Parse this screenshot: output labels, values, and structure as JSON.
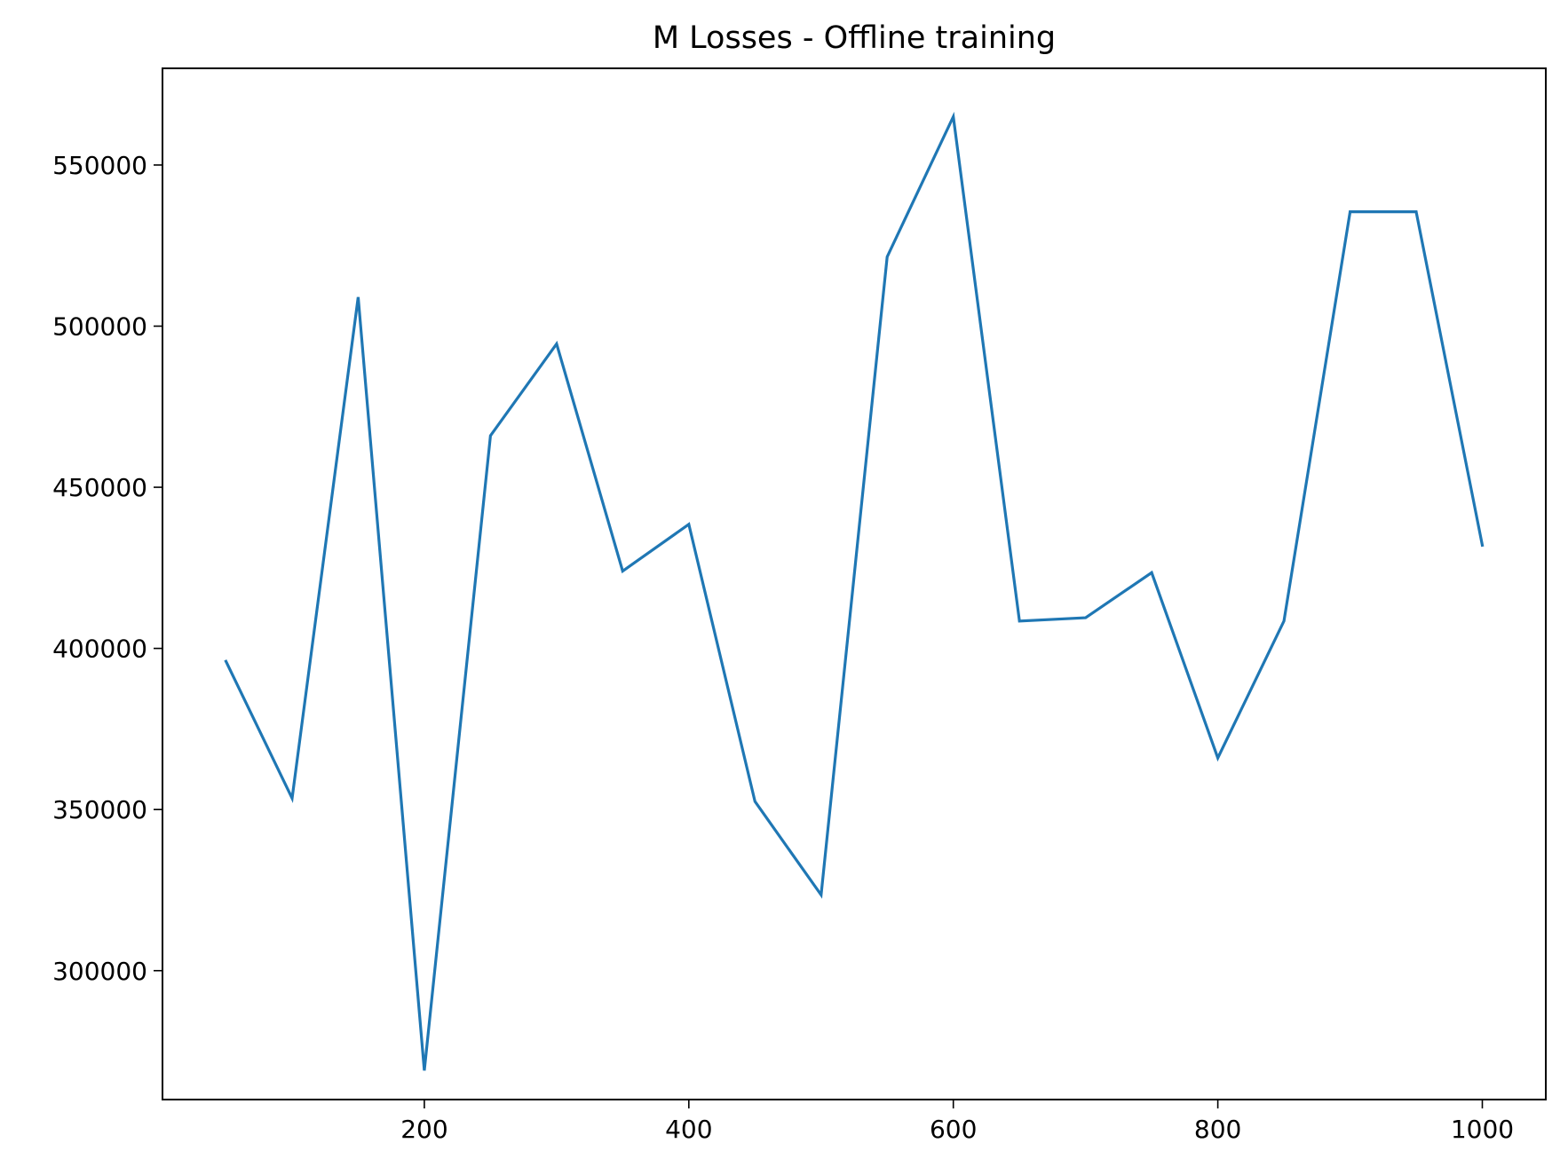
{
  "chart_data": {
    "type": "line",
    "title": "M Losses - Offline training",
    "xlabel": "",
    "ylabel": "",
    "xlim": [
      2,
      1048
    ],
    "ylim": [
      260000,
      580000
    ],
    "x_ticks": [
      200,
      400,
      600,
      800,
      1000
    ],
    "y_ticks": [
      300000,
      350000,
      400000,
      450000,
      500000,
      550000
    ],
    "grid": false,
    "legend": "none",
    "series": [
      {
        "color": "#1f77b4",
        "x": [
          50,
          100,
          150,
          200,
          250,
          300,
          350,
          400,
          450,
          500,
          550,
          600,
          650,
          700,
          750,
          800,
          850,
          900,
          950,
          1000
        ],
        "y": [
          396000,
          353500,
          509000,
          269000,
          466000,
          494500,
          424000,
          438500,
          352500,
          323500,
          521500,
          565000,
          408500,
          409500,
          423500,
          366000,
          408500,
          535500,
          535500,
          432000
        ]
      }
    ]
  }
}
